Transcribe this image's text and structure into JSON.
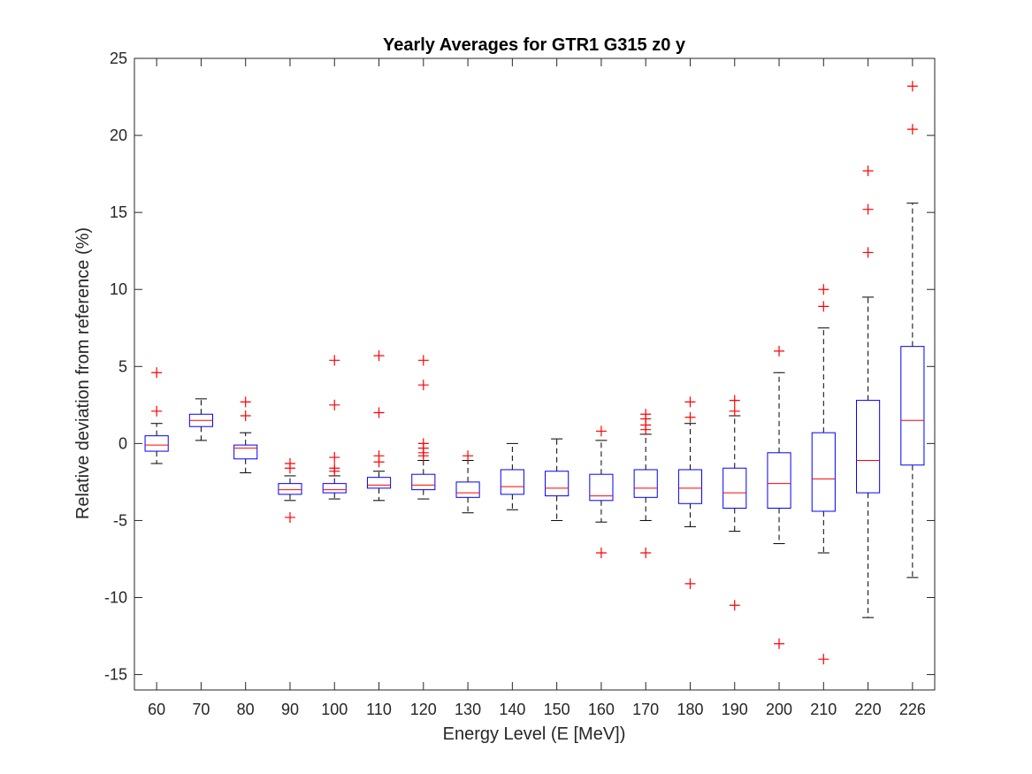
{
  "chart_data": {
    "type": "box",
    "title": "Yearly Averages for GTR1 G315 z0 y",
    "xlabel": "Energy Level (E [MeV])",
    "ylabel": "Relative deviation from reference (%)",
    "ylim": [
      -16,
      25
    ],
    "yticks": [
      -15,
      -10,
      -5,
      0,
      5,
      10,
      15,
      20,
      25
    ],
    "grid": false,
    "colors": {
      "box": "#0000ff",
      "median": "#ff0000",
      "whisker": "#000000",
      "outlier": "#ff0000"
    },
    "categories": [
      "60",
      "70",
      "80",
      "90",
      "100",
      "110",
      "120",
      "130",
      "140",
      "150",
      "160",
      "170",
      "180",
      "190",
      "200",
      "210",
      "220",
      "226"
    ],
    "boxes": [
      {
        "q1": -0.5,
        "median": -0.1,
        "q3": 0.5,
        "whisker_low": -1.3,
        "whisker_high": 1.3,
        "outliers": [
          4.6,
          2.1
        ]
      },
      {
        "q1": 1.1,
        "median": 1.5,
        "q3": 1.9,
        "whisker_low": 0.2,
        "whisker_high": 2.9,
        "outliers": []
      },
      {
        "q1": -1.0,
        "median": -0.3,
        "q3": -0.1,
        "whisker_low": -1.9,
        "whisker_high": 0.7,
        "outliers": [
          2.7,
          1.8
        ]
      },
      {
        "q1": -3.3,
        "median": -3.0,
        "q3": -2.6,
        "whisker_low": -3.7,
        "whisker_high": -2.1,
        "outliers": [
          -1.3,
          -1.6,
          -4.8
        ]
      },
      {
        "q1": -3.2,
        "median": -3.0,
        "q3": -2.6,
        "whisker_low": -3.6,
        "whisker_high": -2.1,
        "outliers": [
          5.4,
          2.5,
          -0.9,
          -1.6,
          -1.8
        ]
      },
      {
        "q1": -2.9,
        "median": -2.7,
        "q3": -2.2,
        "whisker_low": -3.7,
        "whisker_high": -1.8,
        "outliers": [
          5.7,
          2.0,
          -0.8,
          -1.2
        ]
      },
      {
        "q1": -3.0,
        "median": -2.7,
        "q3": -2.0,
        "whisker_low": -3.6,
        "whisker_high": -1.1,
        "outliers": [
          5.4,
          3.8,
          0.0,
          -0.3,
          -0.6,
          -0.8
        ]
      },
      {
        "q1": -3.5,
        "median": -3.2,
        "q3": -2.5,
        "whisker_low": -4.5,
        "whisker_high": -1.1,
        "outliers": [
          -0.8
        ]
      },
      {
        "q1": -3.3,
        "median": -2.8,
        "q3": -1.7,
        "whisker_low": -4.3,
        "whisker_high": 0.0,
        "outliers": []
      },
      {
        "q1": -3.4,
        "median": -2.9,
        "q3": -1.8,
        "whisker_low": -5.0,
        "whisker_high": 0.3,
        "outliers": []
      },
      {
        "q1": -3.7,
        "median": -3.4,
        "q3": -2.0,
        "whisker_low": -5.1,
        "whisker_high": 0.2,
        "outliers": [
          0.8,
          -7.1
        ]
      },
      {
        "q1": -3.5,
        "median": -2.9,
        "q3": -1.7,
        "whisker_low": -5.0,
        "whisker_high": 0.6,
        "outliers": [
          1.9,
          1.6,
          1.2,
          0.9,
          -7.1
        ]
      },
      {
        "q1": -3.9,
        "median": -2.9,
        "q3": -1.7,
        "whisker_low": -5.4,
        "whisker_high": 1.3,
        "outliers": [
          2.7,
          1.7,
          -9.1
        ]
      },
      {
        "q1": -4.2,
        "median": -3.2,
        "q3": -1.6,
        "whisker_low": -5.7,
        "whisker_high": 1.8,
        "outliers": [
          2.8,
          2.1,
          -10.5
        ]
      },
      {
        "q1": -4.2,
        "median": -2.6,
        "q3": -0.6,
        "whisker_low": -6.5,
        "whisker_high": 4.6,
        "outliers": [
          6.0,
          -13.0
        ]
      },
      {
        "q1": -4.4,
        "median": -2.3,
        "q3": 0.7,
        "whisker_low": -7.1,
        "whisker_high": 7.5,
        "outliers": [
          10.0,
          8.9,
          -14.0
        ]
      },
      {
        "q1": -3.2,
        "median": -1.1,
        "q3": 2.8,
        "whisker_low": -11.3,
        "whisker_high": 9.5,
        "outliers": [
          17.7,
          15.2,
          12.4
        ]
      },
      {
        "q1": -1.4,
        "median": 1.5,
        "q3": 6.3,
        "whisker_low": -8.7,
        "whisker_high": 15.6,
        "outliers": [
          23.2,
          20.4
        ]
      }
    ]
  }
}
